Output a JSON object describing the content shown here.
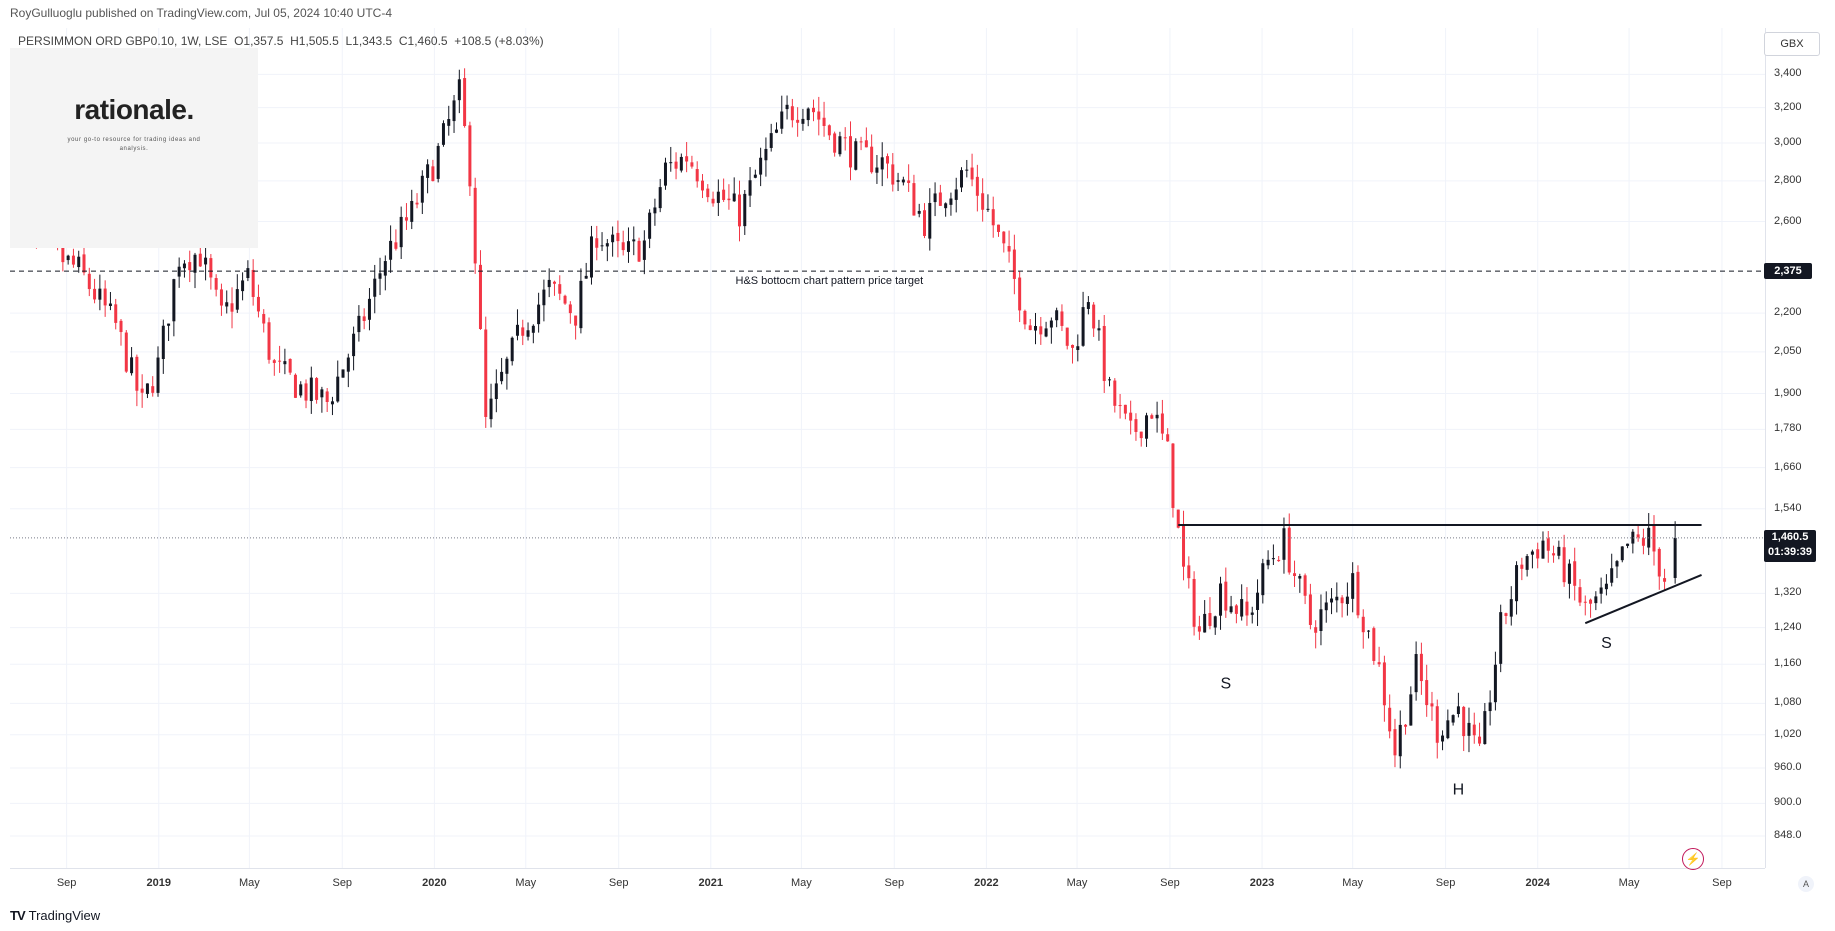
{
  "publisher_line": "RoyGulluoglu published on TradingView.com, Jul 05, 2024 10:40 UTC-4",
  "legend": {
    "symbol": "PERSIMMON ORD GBP0.10, 1W, LSE",
    "open": "O1,357.5",
    "high": "H1,505.5",
    "low": "L1,343.5",
    "close": "C1,460.5",
    "change": "+108.5 (+8.03%)"
  },
  "watermark": {
    "title": "rationale.",
    "subtitle": "your go-to resource for trading ideas and analysis."
  },
  "currency": "GBX",
  "target_label": "2,375",
  "last_price_label": "1,460.5",
  "countdown": "01:39:39",
  "footer_brand": "TradingView",
  "auto_label": "A",
  "chart_data": {
    "type": "candlestick",
    "title": "PERSIMMON ORD GBP0.10, 1W, LSE",
    "ylabel": "GBX",
    "y_scale": "log",
    "ylim": [
      800,
      3700
    ],
    "xlim": [
      "2018-06-18",
      "2024-10-28"
    ],
    "price_ticks": [
      "3,400",
      "3,200",
      "3,000",
      "2,800",
      "2,600",
      "2,200",
      "2,050",
      "1,900",
      "1,780",
      "1,660",
      "1,540",
      "1,320",
      "1,240",
      "1,160",
      "1,080",
      "1,020",
      "960.0",
      "900.0",
      "848.0"
    ],
    "time_ticks": [
      {
        "label": "Sep",
        "date": "2018-09-01",
        "year": false
      },
      {
        "label": "2019",
        "date": "2019-01-01",
        "year": true
      },
      {
        "label": "May",
        "date": "2019-05-01",
        "year": false
      },
      {
        "label": "Sep",
        "date": "2019-09-01",
        "year": false
      },
      {
        "label": "2020",
        "date": "2020-01-01",
        "year": true
      },
      {
        "label": "May",
        "date": "2020-05-01",
        "year": false
      },
      {
        "label": "Sep",
        "date": "2020-09-01",
        "year": false
      },
      {
        "label": "2021",
        "date": "2021-01-01",
        "year": true
      },
      {
        "label": "May",
        "date": "2021-05-01",
        "year": false
      },
      {
        "label": "Sep",
        "date": "2021-09-01",
        "year": false
      },
      {
        "label": "2022",
        "date": "2022-01-01",
        "year": true
      },
      {
        "label": "May",
        "date": "2022-05-01",
        "year": false
      },
      {
        "label": "Sep",
        "date": "2022-09-01",
        "year": false
      },
      {
        "label": "2023",
        "date": "2023-01-01",
        "year": true
      },
      {
        "label": "May",
        "date": "2023-05-01",
        "year": false
      },
      {
        "label": "Sep",
        "date": "2023-09-01",
        "year": false
      },
      {
        "label": "2024",
        "date": "2024-01-01",
        "year": true
      },
      {
        "label": "May",
        "date": "2024-05-01",
        "year": false
      },
      {
        "label": "Sep",
        "date": "2024-09-01",
        "year": false
      }
    ],
    "last_price": 1460.5,
    "target_price": 2375,
    "target_label": "H&S bottocm chart pattern price target",
    "neckline": {
      "start": [
        "2022-09-12",
        1495
      ],
      "end": [
        "2024-08-05",
        1495
      ]
    },
    "trendline": {
      "start": [
        "2024-03-04",
        1250
      ],
      "end": [
        "2024-08-05",
        1365
      ]
    },
    "pattern_labels": [
      {
        "text": "S",
        "date": "2022-11-14",
        "price": 1110
      },
      {
        "text": "H",
        "date": "2023-09-18",
        "price": 915
      },
      {
        "text": "S",
        "date": "2024-04-01",
        "price": 1195
      }
    ],
    "anchors": [
      [
        "2018-06-25",
        2900
      ],
      [
        "2018-07-16",
        2500
      ],
      [
        "2018-08-27",
        2440
      ],
      [
        "2018-09-24",
        2380
      ],
      [
        "2018-11-12",
        2150
      ],
      [
        "2018-12-17",
        1860
      ],
      [
        "2019-01-07",
        2000
      ],
      [
        "2019-02-04",
        2440
      ],
      [
        "2019-03-04",
        2450
      ],
      [
        "2019-04-01",
        2180
      ],
      [
        "2019-05-06",
        2350
      ],
      [
        "2019-06-10",
        1990
      ],
      [
        "2019-07-15",
        1920
      ],
      [
        "2019-08-19",
        1870
      ],
      [
        "2019-09-30",
        2130
      ],
      [
        "2019-11-04",
        2440
      ],
      [
        "2019-12-09",
        2640
      ],
      [
        "2020-01-13",
        2950
      ],
      [
        "2020-02-10",
        3280
      ],
      [
        "2020-02-24",
        2850
      ],
      [
        "2020-03-16",
        1800
      ],
      [
        "2020-04-06",
        1950
      ],
      [
        "2020-05-04",
        2150
      ],
      [
        "2020-06-08",
        2300
      ],
      [
        "2020-07-13",
        2200
      ],
      [
        "2020-08-10",
        2550
      ],
      [
        "2020-09-14",
        2440
      ],
      [
        "2020-10-12",
        2500
      ],
      [
        "2020-11-09",
        2860
      ],
      [
        "2020-12-07",
        2930
      ],
      [
        "2021-01-11",
        2750
      ],
      [
        "2021-02-15",
        2640
      ],
      [
        "2021-03-15",
        2880
      ],
      [
        "2021-04-19",
        3170
      ],
      [
        "2021-05-17",
        3230
      ],
      [
        "2021-06-14",
        3060
      ],
      [
        "2021-07-19",
        2930
      ],
      [
        "2021-08-23",
        2900
      ],
      [
        "2021-09-20",
        2780
      ],
      [
        "2021-10-18",
        2600
      ],
      [
        "2021-11-15",
        2750
      ],
      [
        "2021-12-13",
        2850
      ],
      [
        "2022-01-10",
        2650
      ],
      [
        "2022-02-07",
        2400
      ],
      [
        "2022-03-07",
        2150
      ],
      [
        "2022-04-04",
        2200
      ],
      [
        "2022-05-02",
        2050
      ],
      [
        "2022-05-23",
        2280
      ],
      [
        "2022-06-20",
        1900
      ],
      [
        "2022-07-18",
        1760
      ],
      [
        "2022-08-15",
        1850
      ],
      [
        "2022-09-05",
        1700
      ],
      [
        "2022-09-26",
        1370
      ],
      [
        "2022-10-17",
        1230
      ],
      [
        "2022-11-14",
        1330
      ],
      [
        "2022-12-19",
        1260
      ],
      [
        "2023-01-16",
        1400
      ],
      [
        "2023-02-06",
        1450
      ],
      [
        "2023-03-13",
        1250
      ],
      [
        "2023-04-10",
        1290
      ],
      [
        "2023-05-08",
        1350
      ],
      [
        "2023-06-12",
        1150
      ],
      [
        "2023-07-03",
        990
      ],
      [
        "2023-07-31",
        1150
      ],
      [
        "2023-08-28",
        1030
      ],
      [
        "2023-09-25",
        1070
      ],
      [
        "2023-10-23",
        975
      ],
      [
        "2023-11-20",
        1240
      ],
      [
        "2023-12-18",
        1400
      ],
      [
        "2024-01-15",
        1450
      ],
      [
        "2024-02-12",
        1380
      ],
      [
        "2024-03-11",
        1280
      ],
      [
        "2024-04-08",
        1320
      ],
      [
        "2024-05-06",
        1440
      ],
      [
        "2024-06-03",
        1460
      ],
      [
        "2024-06-24",
        1357.5
      ]
    ],
    "last_candle": {
      "open": 1357.5,
      "high": 1505.5,
      "low": 1343.5,
      "close": 1460.5
    }
  }
}
